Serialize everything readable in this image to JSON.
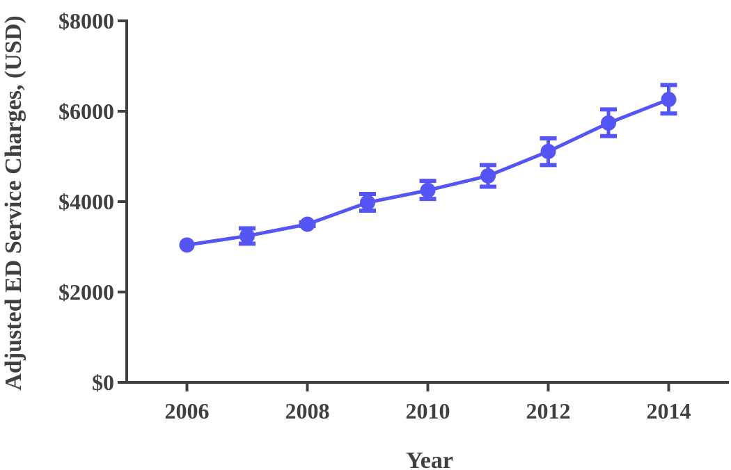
{
  "chart_data": {
    "type": "line",
    "xlabel": "Year",
    "ylabel": "Adjusted ED Service Charges, (USD)",
    "xlim": [
      2005,
      2015
    ],
    "ylim": [
      0,
      8000
    ],
    "xticks": [
      2006,
      2008,
      2010,
      2012,
      2014
    ],
    "xtick_labels": [
      "2006",
      "2008",
      "2010",
      "2012",
      "2014"
    ],
    "yticks": [
      0,
      2000,
      4000,
      6000,
      8000
    ],
    "ytick_labels": [
      "$0",
      "$2000",
      "$4000",
      "$6000",
      "$8000"
    ],
    "grid": false,
    "legend": "none",
    "series": [
      {
        "color": "#5555f5",
        "x": [
          2006,
          2007,
          2008,
          2009,
          2010,
          2011,
          2012,
          2013,
          2014
        ],
        "y": [
          3040,
          3240,
          3500,
          3980,
          4250,
          4570,
          5110,
          5740,
          6260
        ],
        "error_low": [
          3040,
          3070,
          3460,
          3800,
          4060,
          4330,
          4810,
          5450,
          5950
        ],
        "error_high": [
          3040,
          3410,
          3540,
          4170,
          4460,
          4810,
          5400,
          6040,
          6580
        ]
      }
    ]
  }
}
